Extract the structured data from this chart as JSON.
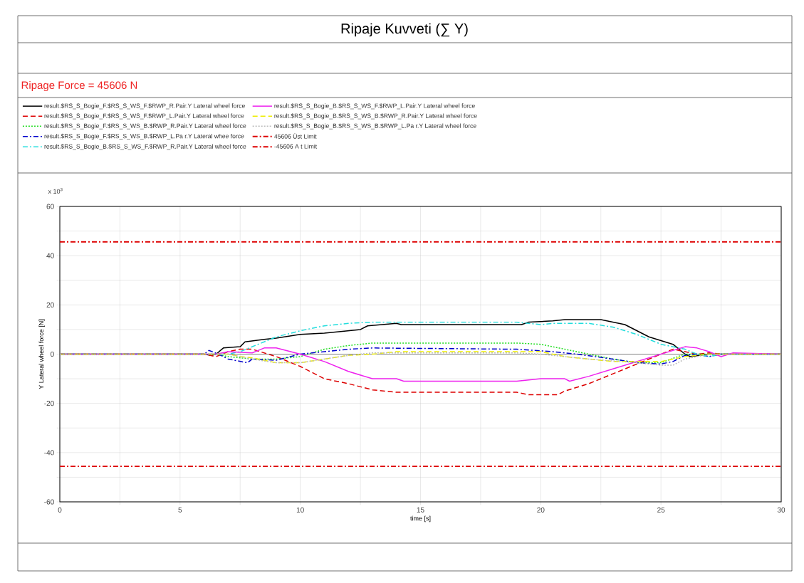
{
  "chart_data": {
    "type": "line",
    "title": "Ripaje Kuvveti (∑ Y)",
    "subtitle": "Ripage Force = 45606 N",
    "xlabel": "time [s]",
    "ylabel": "Y Lateral wheel force [N]",
    "annotations": [
      "x 10$^{3}$"
    ],
    "xlim": [
      0,
      30
    ],
    "ylim": [
      -60,
      60
    ],
    "xticks": [
      0,
      {
        "value": 2.5,
        "label": null
      },
      5,
      {
        "value": 7.5,
        "label": null
      },
      10,
      {
        "value": 12.5,
        "label": null
      },
      15,
      {
        "value": 17.5,
        "label": null
      },
      20,
      {
        "value": 22.5,
        "label": null
      },
      25,
      {
        "value": 27.5,
        "label": null
      },
      30
    ],
    "yticks": [
      -60,
      {
        "value": -50,
        "label": null
      },
      -40,
      {
        "value": -30,
        "label": null
      },
      -20,
      {
        "value": -10,
        "label": null
      },
      0,
      {
        "value": 10,
        "label": null
      },
      20,
      {
        "value": 30,
        "label": null
      },
      40,
      {
        "value": 50,
        "label": null
      },
      60
    ],
    "grid": true,
    "legend": "top",
    "series": [
      {
        "name": "result.$RS_S_Bogie_F.$RS_S_WS_F.$RWP_R.Pair.Y Lateral wheel force",
        "color": "#000000",
        "line_style": "solid",
        "x": [
          0,
          6,
          6.3,
          6.5,
          6.8,
          7.5,
          7.7,
          8.5,
          9,
          10,
          11,
          12,
          12.5,
          12.8,
          14,
          14.2,
          19.2,
          19.5,
          20.5,
          21,
          22.5,
          23.5,
          24.5,
          25,
          25.5,
          26,
          26.2,
          27,
          30
        ],
        "values": [
          0,
          0,
          -0.5,
          0,
          2.5,
          3,
          5,
          6,
          6.5,
          8,
          8.5,
          9.5,
          10,
          11.5,
          12.5,
          12,
          12,
          13,
          13.5,
          14,
          14,
          12,
          7,
          5.5,
          4,
          0,
          -1,
          0,
          0
        ]
      },
      {
        "name": "result.$RS_S_Bogie_F.$RS_S_WS_F.$RWP_L.Pair.Y Lateral wheel force",
        "color": "#dd0000",
        "line_style": "dashed",
        "x": [
          0,
          6,
          6.5,
          7,
          7.5,
          8,
          9,
          10,
          11,
          12,
          13,
          14,
          19,
          19.5,
          20,
          20.7,
          21,
          22,
          23,
          24,
          25,
          25.5,
          26,
          26.5,
          27,
          27.5,
          30
        ],
        "values": [
          0,
          0,
          -1,
          1,
          2,
          2,
          -1,
          -5,
          -10,
          -12,
          -14.5,
          -15.5,
          -15.5,
          -16.5,
          -16.5,
          -16.5,
          -15,
          -12,
          -8,
          -4,
          0,
          2,
          1,
          0,
          0.5,
          0,
          0
        ]
      },
      {
        "name": "result.$RS_S_Bogie_F.$RS_S_WS_B.$RWP_R.Pair.Y Lateral wheel force",
        "color": "#22dd22",
        "line_style": "dotted",
        "x": [
          0,
          6.5,
          7,
          8,
          9,
          10,
          11,
          12,
          13,
          19,
          20,
          21,
          22,
          23,
          24,
          25,
          25.7,
          26,
          30
        ],
        "values": [
          0,
          0,
          -1,
          -2,
          -2,
          -1,
          2,
          3.5,
          4.5,
          4.5,
          4,
          2,
          0,
          -2,
          -3.5,
          -3.5,
          -1,
          0,
          0
        ]
      },
      {
        "name": "result.$RS_S_Bogie_F.$RS_S_WS_B.$RWP_L.Pa r.Y Lateral whee  force",
        "color": "#0000cc",
        "line_style": "dashdot",
        "x": [
          0,
          6,
          6.2,
          6.6,
          7,
          7.8,
          8,
          9,
          10,
          11,
          12,
          13,
          19,
          20.5,
          21.5,
          23,
          24,
          25,
          25.5,
          26,
          26.5,
          27,
          27.5,
          30
        ],
        "values": [
          0,
          0,
          1.5,
          0,
          -2,
          -3.5,
          -2,
          -2.5,
          0,
          1,
          2,
          2.5,
          2,
          1,
          0,
          -2,
          -3.5,
          -4,
          -3,
          -0.5,
          0,
          -1,
          0,
          0
        ]
      },
      {
        "name": "result.$RS_S_Bogie_B.$RS_S_WS_F.$RWP_R.Pair.Y Lateral wheel force",
        "color": "#22dddd",
        "line_style": "dashdot",
        "x": [
          0,
          6.5,
          7,
          7.5,
          8,
          8.5,
          9,
          10,
          11,
          12,
          13,
          14,
          19,
          19.5,
          20,
          20.5,
          22,
          23,
          24,
          25,
          26,
          26.5,
          27,
          27.5,
          30
        ],
        "values": [
          0,
          0,
          0,
          1,
          3,
          5,
          7,
          9.5,
          11.5,
          12.5,
          13,
          13,
          13,
          12.5,
          12,
          12.5,
          12.5,
          11,
          8,
          4,
          2,
          0,
          -1,
          0,
          0
        ]
      },
      {
        "name": "result.$RS_S_Bogie_B.$RS_S_WS_F.$RWP_L.Pair.Y Lateral wheel force",
        "color": "#ee22ee",
        "line_style": "solid",
        "x": [
          0,
          6,
          6.5,
          7,
          8,
          8.5,
          9,
          10,
          11,
          12,
          13,
          14,
          14.3,
          19,
          20,
          21,
          21.2,
          22,
          23,
          24,
          25,
          25.5,
          26,
          26.5,
          27,
          27.5,
          28,
          30
        ],
        "values": [
          0,
          0,
          0,
          1,
          0.5,
          2.5,
          2.5,
          0,
          -3,
          -7,
          -10,
          -10,
          -11,
          -11,
          -10,
          -10,
          -11,
          -9,
          -6,
          -3,
          0,
          1.5,
          3,
          2.5,
          1,
          -1,
          0.5,
          0
        ]
      },
      {
        "name": "result.$RS_S_Bogie_B.$RS_S_WS_B.$RWP_R.Pair.Y Lateral wheel force",
        "color": "#eeee00",
        "line_style": "dashed",
        "x": [
          0,
          7,
          7.5,
          8,
          9,
          10,
          11,
          12,
          13,
          14,
          19,
          20,
          21,
          22,
          23,
          24,
          25,
          25.5,
          26,
          27,
          30
        ],
        "values": [
          0,
          0,
          -1,
          -1.5,
          -3.5,
          -3.5,
          -2,
          -0.5,
          0,
          1,
          1,
          1,
          -1,
          -2,
          -3,
          -3,
          -3,
          -2,
          -1,
          0,
          0
        ]
      },
      {
        "name": "result.$RS_S_Bogie_B.$RS_S_WS_B.$RWP_L.Pa r.Y Lateral wheel force",
        "color": "#bbbbbb",
        "line_style": "dotted",
        "x": [
          0,
          7,
          8,
          9,
          10,
          11,
          12,
          13,
          19,
          20,
          22,
          24,
          25,
          25.5,
          26,
          27,
          30
        ],
        "values": [
          0,
          0,
          -2,
          -3.5,
          -3.5,
          -2,
          -0.5,
          0.5,
          0.5,
          0,
          -2,
          -3.5,
          -4.5,
          -4.5,
          -2,
          0,
          0
        ]
      }
    ],
    "ref_lines": [
      {
        "axis": "y",
        "value": 0,
        "color": "#000000",
        "line_style": "solid"
      },
      {
        "axis": "y",
        "value": 45.606,
        "label": "45606 Üst Limit",
        "color": "#dd0000",
        "line_style": "dashdot"
      },
      {
        "axis": "y",
        "value": -45.606,
        "label": "-45606 A t Limit",
        "color": "#dd0000",
        "line_style": "dashdot"
      }
    ]
  }
}
